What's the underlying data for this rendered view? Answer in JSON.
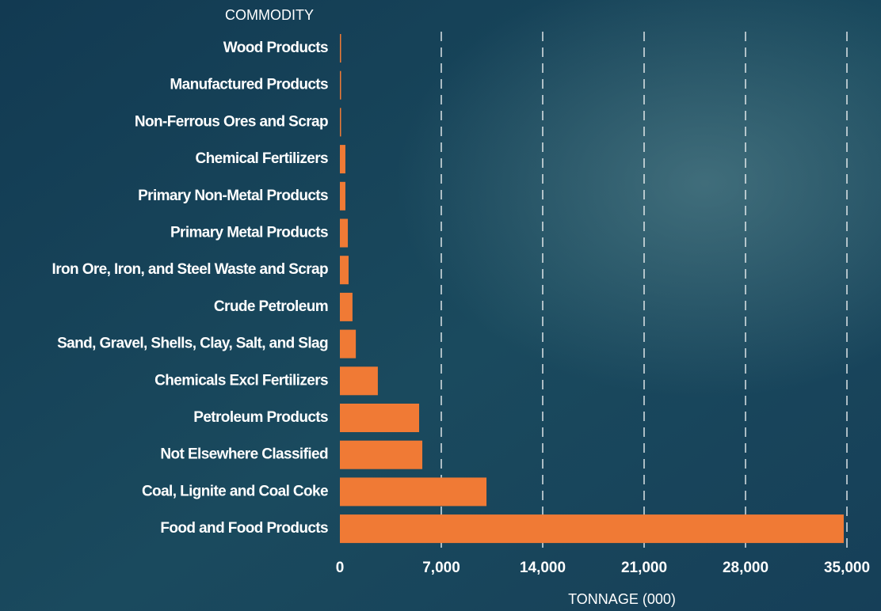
{
  "chart_data": {
    "type": "hbar",
    "y_axis_label": "COMMODITY",
    "x_axis_label": "TONNAGE (000)",
    "categories": [
      "Wood Products",
      "Manufactured Products",
      "Non-Ferrous Ores and Scrap",
      "Chemical Fertilizers",
      "Primary Non-Metal Products",
      "Primary Metal Products",
      "Iron Ore, Iron, and Steel Waste and Scrap",
      "Crude Petroleum",
      "Sand, Gravel, Shells, Clay, Salt, and Slag",
      "Chemicals Excl Fertilizers",
      "Petroleum Products",
      "Not Elsewhere Classified",
      "Coal, Lignite and Coal Coke",
      "Food and Food Products"
    ],
    "values": [
      50,
      50,
      50,
      380,
      380,
      550,
      600,
      870,
      1100,
      2620,
      5470,
      5690,
      10120,
      34780
    ],
    "color": "#f07a35",
    "xlim": [
      0,
      35000
    ],
    "xticks": [
      0,
      {
        "value": 7000,
        "label": "7,000"
      },
      {
        "value": 14000,
        "label": "14,000"
      },
      {
        "value": 21000,
        "label": "21,000"
      },
      {
        "value": 28000,
        "label": "28,000"
      },
      {
        "value": 35000,
        "label": "35,000"
      }
    ],
    "grid": true
  }
}
